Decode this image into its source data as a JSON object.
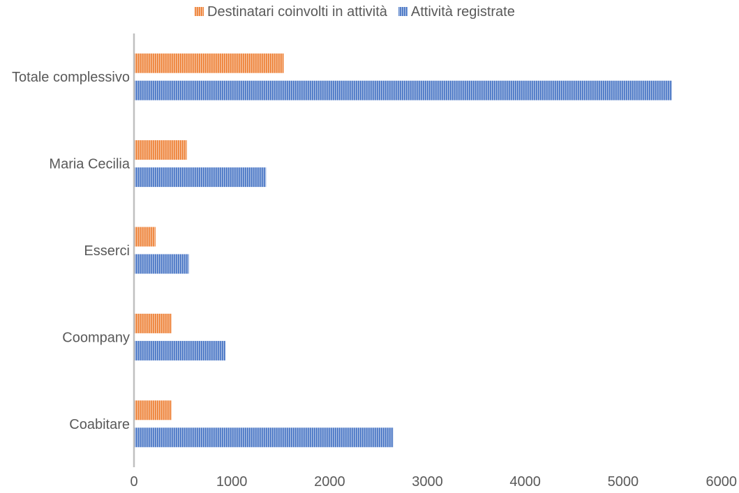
{
  "chart_data": {
    "type": "bar",
    "orientation": "horizontal",
    "title": "",
    "xlabel": "",
    "ylabel": "",
    "categories": [
      "Totale complessivo",
      "Maria Cecilia",
      "Esserci",
      "Coompany",
      "Coabitare"
    ],
    "series": [
      {
        "name": "Destinatari coinvolti in attività",
        "color": "#ED7D31",
        "values": [
          1530,
          540,
          220,
          385,
          385
        ]
      },
      {
        "name": "Attività registrate",
        "color": "#4472C4",
        "values": [
          5500,
          1350,
          560,
          935,
          2650
        ]
      }
    ],
    "xlim": [
      0,
      6000
    ],
    "xticks": [
      0,
      1000,
      2000,
      3000,
      4000,
      5000,
      6000
    ],
    "xtick_labels": [
      "0",
      "1000",
      "2000",
      "3000",
      "4000",
      "5000",
      "6000"
    ],
    "grid": false,
    "legend_position": "top",
    "bar_pattern": "vertical-stripes"
  }
}
